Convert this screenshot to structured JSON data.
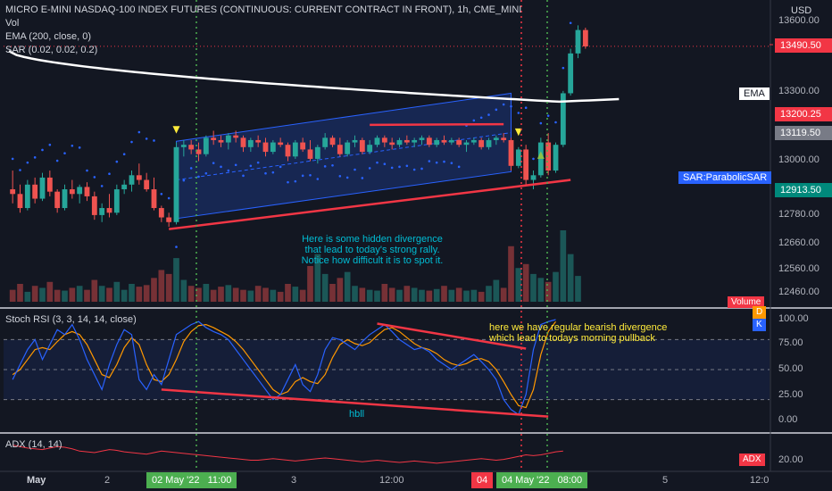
{
  "header": {
    "title": "MICRO E-MINI NASDAQ-100 INDEX FUTURES (CONTINUOUS: CURRENT CONTRACT IN FRONT), 1h, CME_MINI",
    "vol": "Vol",
    "ema": "EMA (200, close, 0)",
    "sar": "SAR (0.02, 0.02, 0.2)",
    "currency": "USD"
  },
  "price_axis": {
    "ticks": [
      "13600.00",
      "13490.50",
      "13300.00",
      "13200.25",
      "13119.50",
      "13000.00",
      "12913.50",
      "12780.00",
      "12660.00",
      "12560.00",
      "12460.00"
    ]
  },
  "labels": {
    "price": "13490.50",
    "ema": "EMA",
    "ema_val": "13200.25",
    "gray": "13119.50",
    "sar": "SAR:ParabolicSAR",
    "sar_val": "12913.50",
    "volume": "Volume"
  },
  "stoch": {
    "title": "Stoch RSI (3, 3, 14, 14, close)",
    "ticks": [
      "100.00",
      "75.00",
      "50.00",
      "25.00",
      "0.00"
    ],
    "d_label": "D",
    "k_label": "K",
    "note_line1": "here we have regular bearish divergence",
    "note_line2": "which lead to todays morning pullback",
    "hbll": "hbll"
  },
  "adx": {
    "title": "ADX (14, 14)",
    "tick": "20.00",
    "label": "ADX"
  },
  "annotations": {
    "hidden_div_1": "Here is some hidden divergence",
    "hidden_div_2": "that lead to today's strong rally.",
    "hidden_div_3": "Notice how difficult it is to spot it."
  },
  "time_axis": {
    "labels": [
      "May",
      "2",
      "3",
      "12:00",
      "5",
      "12:0"
    ],
    "box1": "02 May '22   11:00",
    "box2": "04",
    "box3": "04 May '22   08:00"
  },
  "colors": {
    "up": "#26a69a",
    "down": "#ef5350",
    "ema": "#ffffff",
    "sar": "#2962ff",
    "channel": "#2962ff",
    "trendline": "#f23645",
    "vline_green": "#4caf50",
    "vline_red": "#f23645",
    "k_line": "#2962ff",
    "d_line": "#ff9800",
    "annotation": "#00bcd4",
    "stoch_note": "#ffeb3b"
  },
  "chart_data": {
    "type": "candlestick",
    "ylim": [
      12400,
      13650
    ],
    "candles": [
      {
        "o": 12880,
        "h": 12960,
        "l": 12820,
        "c": 12860
      },
      {
        "o": 12860,
        "h": 12900,
        "l": 12780,
        "c": 12800
      },
      {
        "o": 12800,
        "h": 12920,
        "l": 12790,
        "c": 12900
      },
      {
        "o": 12900,
        "h": 12930,
        "l": 12820,
        "c": 12840
      },
      {
        "o": 12840,
        "h": 12950,
        "l": 12830,
        "c": 12930
      },
      {
        "o": 12930,
        "h": 12960,
        "l": 12850,
        "c": 12870
      },
      {
        "o": 12870,
        "h": 12880,
        "l": 12780,
        "c": 12800
      },
      {
        "o": 12800,
        "h": 12900,
        "l": 12790,
        "c": 12880
      },
      {
        "o": 12880,
        "h": 12920,
        "l": 12840,
        "c": 12860
      },
      {
        "o": 12860,
        "h": 12900,
        "l": 12820,
        "c": 12890
      },
      {
        "o": 12890,
        "h": 12910,
        "l": 12830,
        "c": 12850
      },
      {
        "o": 12850,
        "h": 12870,
        "l": 12750,
        "c": 12770
      },
      {
        "o": 12770,
        "h": 12820,
        "l": 12740,
        "c": 12800
      },
      {
        "o": 12800,
        "h": 12860,
        "l": 12760,
        "c": 12780
      },
      {
        "o": 12780,
        "h": 12900,
        "l": 12770,
        "c": 12880
      },
      {
        "o": 12880,
        "h": 12920,
        "l": 12860,
        "c": 12900
      },
      {
        "o": 12900,
        "h": 12960,
        "l": 12870,
        "c": 12940
      },
      {
        "o": 12940,
        "h": 12990,
        "l": 12900,
        "c": 12920
      },
      {
        "o": 12920,
        "h": 12950,
        "l": 12870,
        "c": 12880
      },
      {
        "o": 12880,
        "h": 12930,
        "l": 12790,
        "c": 12800
      },
      {
        "o": 12800,
        "h": 12810,
        "l": 12740,
        "c": 12760
      },
      {
        "o": 12760,
        "h": 12780,
        "l": 12720,
        "c": 12740
      },
      {
        "o": 12740,
        "h": 13080,
        "l": 12730,
        "c": 13060
      },
      {
        "o": 13060,
        "h": 13090,
        "l": 13020,
        "c": 13070
      },
      {
        "o": 13070,
        "h": 13090,
        "l": 13030,
        "c": 13050
      },
      {
        "o": 13050,
        "h": 13080,
        "l": 13000,
        "c": 13030
      },
      {
        "o": 13030,
        "h": 13110,
        "l": 13020,
        "c": 13100
      },
      {
        "o": 13100,
        "h": 13130,
        "l": 13070,
        "c": 13090
      },
      {
        "o": 13090,
        "h": 13110,
        "l": 13060,
        "c": 13080
      },
      {
        "o": 13080,
        "h": 13120,
        "l": 13050,
        "c": 13110
      },
      {
        "o": 13110,
        "h": 13130,
        "l": 13080,
        "c": 13100
      },
      {
        "o": 13100,
        "h": 13110,
        "l": 13040,
        "c": 13060
      },
      {
        "o": 13060,
        "h": 13100,
        "l": 13040,
        "c": 13090
      },
      {
        "o": 13090,
        "h": 13110,
        "l": 13060,
        "c": 13080
      },
      {
        "o": 13080,
        "h": 13100,
        "l": 13020,
        "c": 13040
      },
      {
        "o": 13040,
        "h": 13090,
        "l": 13030,
        "c": 13080
      },
      {
        "o": 13080,
        "h": 13100,
        "l": 13060,
        "c": 13070
      },
      {
        "o": 13070,
        "h": 13080,
        "l": 13000,
        "c": 13020
      },
      {
        "o": 13020,
        "h": 13090,
        "l": 13010,
        "c": 13080
      },
      {
        "o": 13080,
        "h": 13100,
        "l": 13040,
        "c": 13050
      },
      {
        "o": 13050,
        "h": 13090,
        "l": 13000,
        "c": 13010
      },
      {
        "o": 13010,
        "h": 13070,
        "l": 12990,
        "c": 13060
      },
      {
        "o": 13060,
        "h": 13120,
        "l": 13050,
        "c": 13100
      },
      {
        "o": 13100,
        "h": 13110,
        "l": 13060,
        "c": 13070
      },
      {
        "o": 13070,
        "h": 13100,
        "l": 13020,
        "c": 13030
      },
      {
        "o": 13030,
        "h": 13090,
        "l": 13020,
        "c": 13080
      },
      {
        "o": 13080,
        "h": 13110,
        "l": 13060,
        "c": 13090
      },
      {
        "o": 13090,
        "h": 13100,
        "l": 13030,
        "c": 13040
      },
      {
        "o": 13040,
        "h": 13090,
        "l": 13030,
        "c": 13070
      },
      {
        "o": 13070,
        "h": 13110,
        "l": 13060,
        "c": 13100
      },
      {
        "o": 13100,
        "h": 13110,
        "l": 13060,
        "c": 13080
      },
      {
        "o": 13080,
        "h": 13100,
        "l": 13050,
        "c": 13070
      },
      {
        "o": 13070,
        "h": 13100,
        "l": 13060,
        "c": 13090
      },
      {
        "o": 13090,
        "h": 13110,
        "l": 13070,
        "c": 13080
      },
      {
        "o": 13080,
        "h": 13100,
        "l": 13060,
        "c": 13090
      },
      {
        "o": 13090,
        "h": 13110,
        "l": 13070,
        "c": 13100
      },
      {
        "o": 13100,
        "h": 13110,
        "l": 13060,
        "c": 13070
      },
      {
        "o": 13070,
        "h": 13100,
        "l": 13060,
        "c": 13090
      },
      {
        "o": 13090,
        "h": 13110,
        "l": 13070,
        "c": 13080
      },
      {
        "o": 13080,
        "h": 13100,
        "l": 13070,
        "c": 13090
      },
      {
        "o": 13090,
        "h": 13100,
        "l": 13060,
        "c": 13070
      },
      {
        "o": 13070,
        "h": 13090,
        "l": 13040,
        "c": 13080
      },
      {
        "o": 13080,
        "h": 13100,
        "l": 13070,
        "c": 13090
      },
      {
        "o": 13090,
        "h": 13100,
        "l": 13050,
        "c": 13060
      },
      {
        "o": 13060,
        "h": 13100,
        "l": 13050,
        "c": 13090
      },
      {
        "o": 13090,
        "h": 13110,
        "l": 13070,
        "c": 13100
      },
      {
        "o": 13100,
        "h": 13120,
        "l": 13080,
        "c": 13090
      },
      {
        "o": 13090,
        "h": 13100,
        "l": 12960,
        "c": 12980
      },
      {
        "o": 12980,
        "h": 13060,
        "l": 12970,
        "c": 13050
      },
      {
        "o": 13050,
        "h": 13070,
        "l": 12900,
        "c": 12920
      },
      {
        "o": 12920,
        "h": 12960,
        "l": 12880,
        "c": 12940
      },
      {
        "o": 12940,
        "h": 13100,
        "l": 12930,
        "c": 13080
      },
      {
        "o": 13080,
        "h": 13120,
        "l": 12940,
        "c": 12960
      },
      {
        "o": 12960,
        "h": 13080,
        "l": 12950,
        "c": 13070
      },
      {
        "o": 13070,
        "h": 13300,
        "l": 13060,
        "c": 13290
      },
      {
        "o": 13290,
        "h": 13480,
        "l": 13280,
        "c": 13460
      },
      {
        "o": 13460,
        "h": 13580,
        "l": 13440,
        "c": 13560
      },
      {
        "o": 13560,
        "h": 13570,
        "l": 13480,
        "c": 13490
      }
    ],
    "volume": [
      30,
      45,
      25,
      40,
      35,
      50,
      30,
      28,
      35,
      40,
      30,
      55,
      40,
      35,
      50,
      30,
      45,
      38,
      42,
      60,
      80,
      70,
      110,
      55,
      40,
      35,
      45,
      30,
      38,
      42,
      35,
      30,
      28,
      40,
      35,
      30,
      25,
      45,
      38,
      30,
      90,
      120,
      70,
      45,
      60,
      75,
      40,
      35,
      30,
      28,
      45,
      35,
      30,
      40,
      35,
      30,
      28,
      32,
      40,
      30,
      35,
      28,
      30,
      25,
      40,
      55,
      35,
      140,
      85,
      95,
      70,
      60,
      50,
      75,
      180,
      120,
      65
    ],
    "k": [
      40,
      55,
      70,
      80,
      60,
      75,
      90,
      85,
      95,
      80,
      60,
      45,
      30,
      55,
      75,
      90,
      85,
      40,
      30,
      45,
      35,
      60,
      85,
      90,
      95,
      98,
      92,
      88,
      85,
      80,
      70,
      60,
      50,
      40,
      30,
      20,
      25,
      40,
      55,
      35,
      28,
      45,
      70,
      82,
      80,
      75,
      70,
      78,
      85,
      90,
      95,
      88,
      80,
      75,
      70,
      72,
      68,
      60,
      55,
      50,
      55,
      60,
      65,
      58,
      50,
      40,
      20,
      10,
      5,
      25,
      70,
      95,
      98,
      100
    ],
    "d": [
      45,
      50,
      60,
      70,
      72,
      70,
      78,
      85,
      88,
      85,
      75,
      60,
      45,
      42,
      55,
      72,
      82,
      75,
      55,
      40,
      38,
      45,
      60,
      78,
      88,
      94,
      95,
      92,
      88,
      84,
      78,
      70,
      60,
      50,
      40,
      30,
      25,
      28,
      38,
      42,
      38,
      36,
      45,
      62,
      75,
      80,
      76,
      74,
      77,
      84,
      90,
      92,
      88,
      82,
      76,
      72,
      70,
      66,
      60,
      56,
      54,
      56,
      60,
      61,
      58,
      50,
      38,
      25,
      14,
      12,
      30,
      65,
      88,
      98
    ],
    "adx": [
      30,
      28,
      26,
      25,
      24,
      26,
      28,
      27,
      25,
      22,
      21,
      20,
      22,
      24,
      23,
      21,
      20,
      19,
      18,
      20,
      22,
      21,
      20,
      19,
      18,
      17,
      16,
      15,
      14,
      13,
      12,
      11,
      10,
      10,
      11,
      12,
      11,
      10,
      9,
      10,
      11,
      12,
      13,
      12,
      11,
      10,
      9,
      8,
      9,
      10,
      9,
      8,
      7,
      8,
      9,
      8,
      7,
      6,
      7,
      8,
      9,
      10,
      11,
      12,
      11,
      10,
      11,
      13,
      15,
      17,
      16,
      17,
      19,
      21,
      22
    ]
  }
}
